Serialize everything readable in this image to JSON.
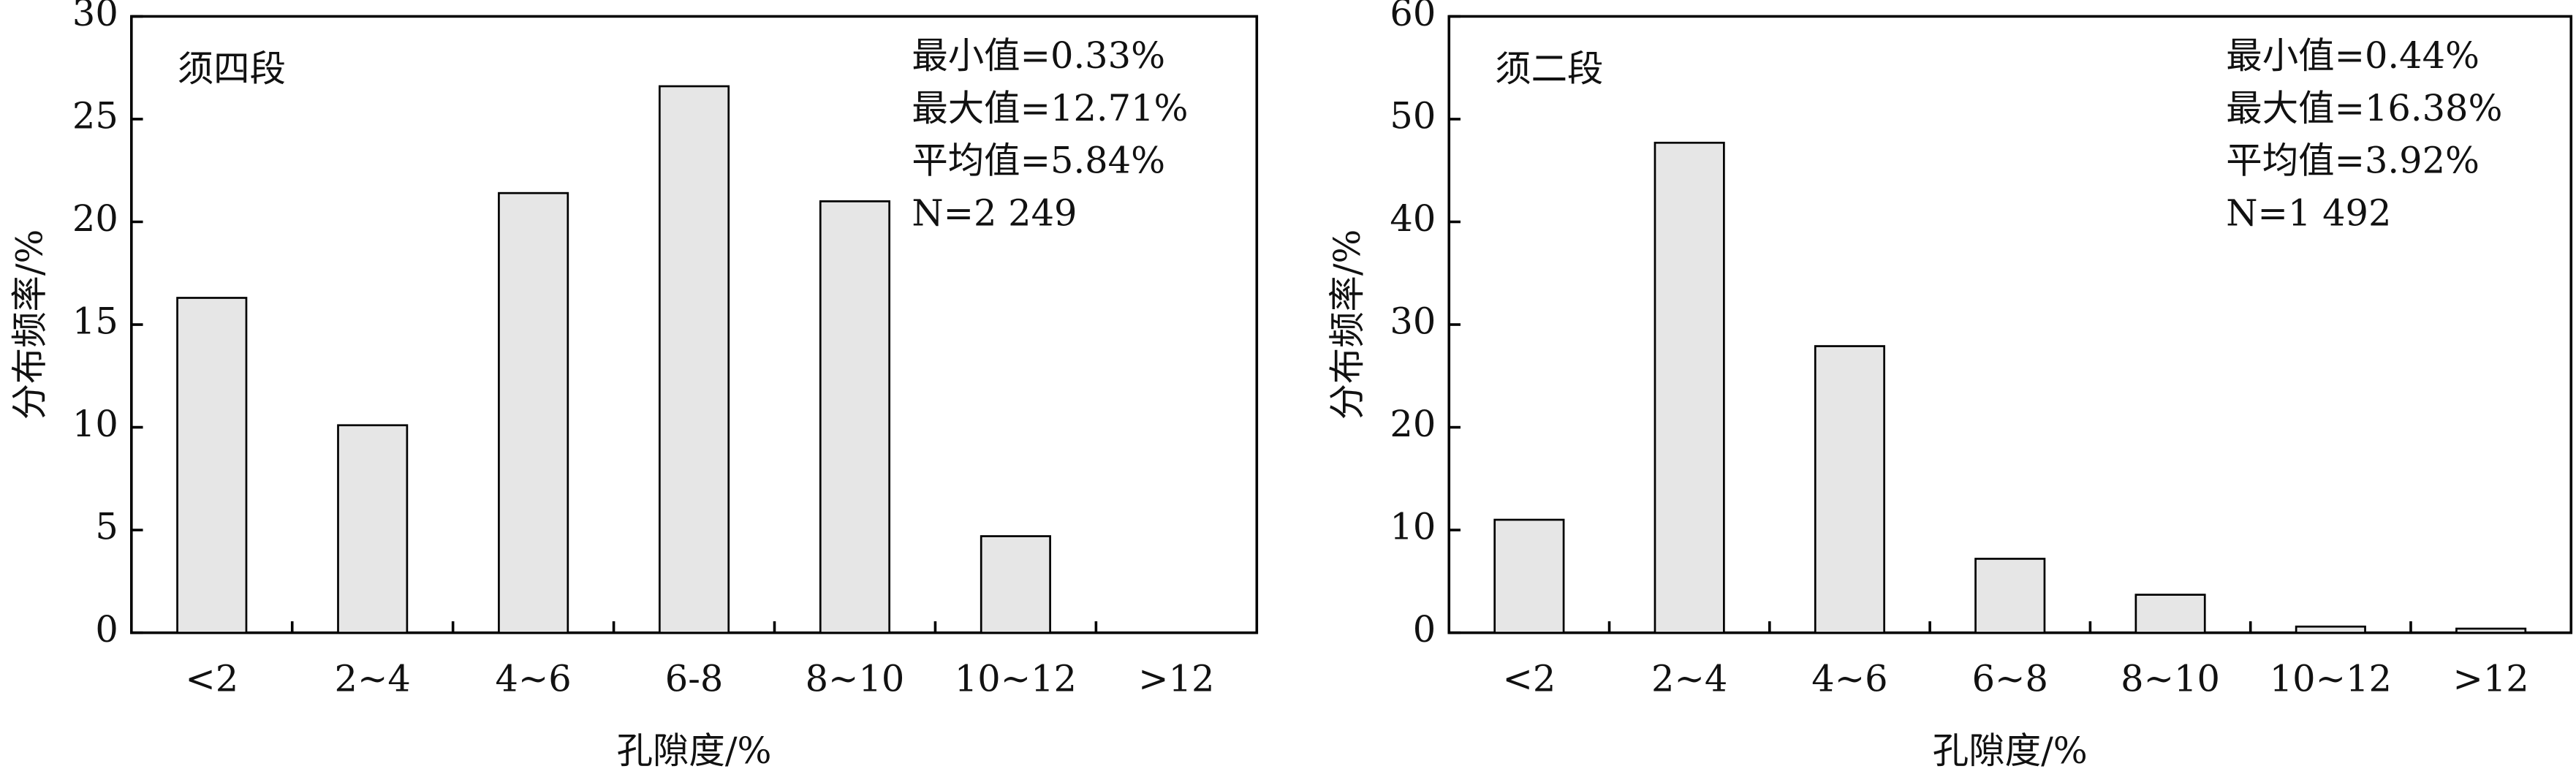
{
  "chart_data": [
    {
      "type": "bar",
      "categories": [
        "<2",
        "2~4",
        "4~6",
        "6-8",
        "8~10",
        "10~12",
        ">12"
      ],
      "values": [
        16.3,
        10.1,
        21.4,
        26.6,
        21.0,
        4.7,
        0
      ],
      "color": "#e6e6e6",
      "ylim": [
        0,
        30
      ],
      "yticks": [
        0,
        5,
        10,
        15,
        20,
        25,
        30
      ],
      "xlabel": "孔隙度/%",
      "ylabel": "分布频率/%",
      "annotations": [
        "须四段",
        "最小值=0.33%",
        "最大值=12.71%",
        "平均值=5.84%",
        "N=2 249"
      ]
    },
    {
      "type": "bar",
      "categories": [
        "<2",
        "2~4",
        "4~6",
        "6~8",
        "8~10",
        "10~12",
        ">12"
      ],
      "values": [
        11.0,
        47.7,
        27.9,
        7.2,
        3.7,
        0.6,
        0.4
      ],
      "color": "#e6e6e6",
      "ylim": [
        0,
        60
      ],
      "yticks": [
        0,
        10,
        20,
        30,
        40,
        50,
        60
      ],
      "xlabel": "孔隙度/%",
      "ylabel": "分布频率/%",
      "annotations": [
        "须二段",
        "最小值=0.44%",
        "最大值=16.38%",
        "平均值=3.92%",
        "N=1 492"
      ]
    }
  ]
}
